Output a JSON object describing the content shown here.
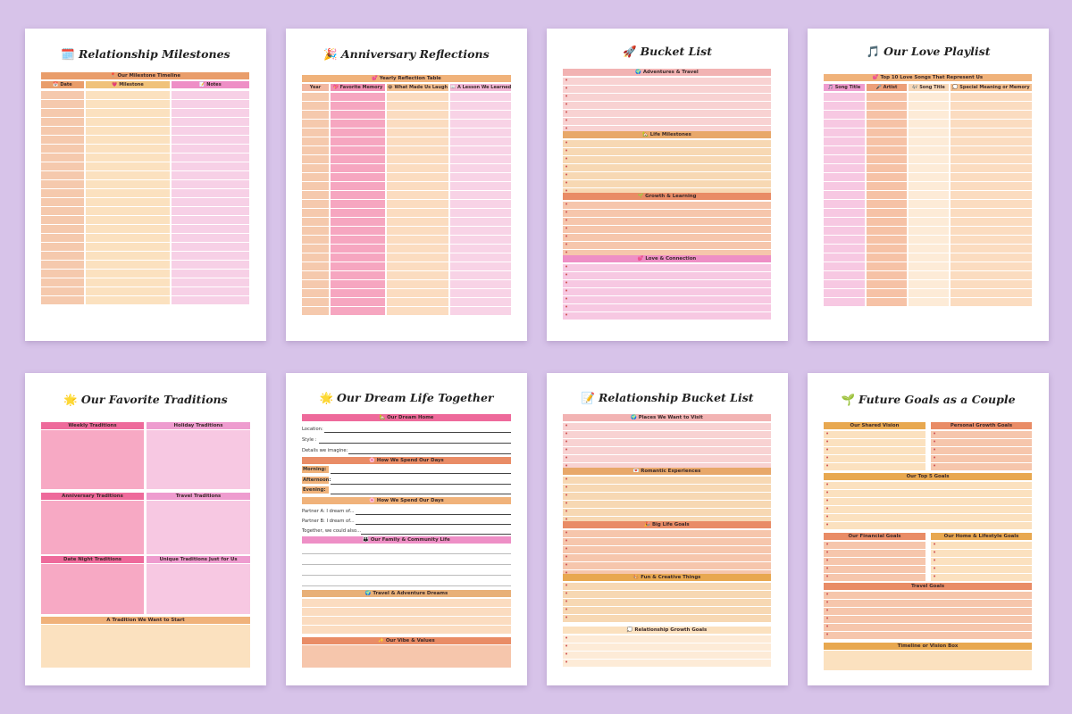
{
  "colors": {
    "background": "#d7c3e9",
    "peach": "#f7d9c4",
    "salmon": "#f2c3a9",
    "orange": "#e99d6a",
    "gold": "#f0c27a",
    "cream": "#fbe1bf",
    "pink": "#f7a9c4",
    "hotpink": "#ee6a9b",
    "lightpink": "#f7c8e0",
    "blush": "#f5c2c2"
  },
  "pages": {
    "milestones": {
      "title": "Relationship Milestones",
      "icon": "🗓️",
      "section": "📍 Our Milestone Timeline",
      "columns": [
        "📅 Date",
        "💗 Milestone",
        "📝 Notes"
      ]
    },
    "anniversary": {
      "title": "Anniversary Reflections",
      "icon": "🎉",
      "section": "💕 Yearly Reflection Table",
      "columns": [
        "Year",
        "💖 Favorite Memory",
        "😂 What Made Us Laugh",
        "📖 A Lesson We Learned"
      ]
    },
    "bucket": {
      "title": "Bucket List",
      "icon": "🚀",
      "sections": [
        "🌍 Adventures & Travel",
        "🏡 Life Milestones",
        "🌱 Growth & Learning",
        "💕 Love & Connection"
      ]
    },
    "playlist": {
      "title": "Our Love Playlist",
      "icon": "🎵",
      "section": "💕 Top 10 Love Songs That Represent Us",
      "columns": [
        "🎵 Song Title",
        "🎤 Artist",
        "🎶 Song Title",
        "💭 Special Meaning or Memory"
      ]
    },
    "traditions": {
      "title": "Our Favorite Traditions",
      "icon": "🌟",
      "boxes": [
        "Weekly Traditions",
        "Holiday Traditions",
        "Anniversary Traditions",
        "Travel Traditions",
        "Date Night Traditions",
        "Unique Traditions Just for Us"
      ],
      "bottom": "A Tradition We Want to Start"
    },
    "dreamlife": {
      "title": "Our Dream Life Together",
      "icon": "🌟",
      "home_header": "🏡 Our Dream Home",
      "home_fields": [
        "Location:",
        "Style :",
        "Details we imagine:"
      ],
      "days_header": "🌸 How We Spend Our Days",
      "day_fields": [
        "Morning:",
        "Afternoon:",
        "Evening:"
      ],
      "days_header2": "🌸 How We Spend Our Days",
      "partner_fields": [
        "Partner A:  I dream of...",
        "Partner B:  I dream of...",
        "Together, we could also..."
      ],
      "family_header": "👪 Our Family & Community Life",
      "travel_header": "🌍 Travel & Adventure Dreams",
      "vibe_header": "✨ Our Vibe & Values"
    },
    "relbucket": {
      "title": "Relationship Bucket List",
      "icon": "📝",
      "sections": [
        "🌍 Places We Want to Visit",
        "💌 Romantic Experiences",
        "🎉 Big Life Goals",
        "🎨 Fun & Creative Things",
        "💭 Relationship Growth Goals"
      ]
    },
    "goals": {
      "title": "Future Goals as a Couple",
      "icon": "🌱",
      "shared": "Our Shared Vision",
      "personal": "Personal Growth Goals",
      "top5": "Our Top 5 Goals",
      "financial": "Our Financial Goals",
      "home": "Our Home & Lifestyle Goals",
      "travel": "Travel Goals",
      "timeline": "Timeline or Vision Box"
    }
  }
}
